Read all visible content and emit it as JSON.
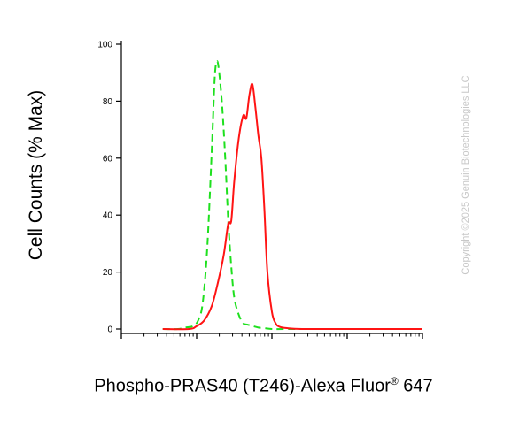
{
  "chart_data": {
    "type": "line",
    "title": "",
    "ylabel": "Cell Counts (% Max)",
    "xlabel_main": "Phospho-PRAS40 (T246)-Alexa Fluor",
    "xlabel_sup": "®",
    "xlabel_tail": " 647",
    "ylim": [
      0,
      100
    ],
    "yticks": [
      "0",
      "20",
      "40",
      "60",
      "80",
      "100"
    ],
    "xscale": "log",
    "xlim_decades": [
      0,
      4
    ],
    "grid": false,
    "series": [
      {
        "color": "#1ee01e",
        "dash": "dashed",
        "x": [
          0.55,
          0.75,
          0.85,
          0.95,
          1.02,
          1.08,
          1.14,
          1.2,
          1.24,
          1.27,
          1.3,
          1.34,
          1.38,
          1.42,
          1.46,
          1.5,
          1.56,
          1.62,
          1.68,
          1.75,
          1.82,
          1.9,
          2.0,
          2.2,
          2.5,
          3.0,
          4.0
        ],
        "y": [
          0,
          0,
          0.5,
          1,
          3,
          9,
          28,
          62,
          88,
          94,
          90,
          78,
          60,
          38,
          22,
          11,
          5,
          2,
          1.5,
          1,
          0.5,
          0.3,
          0,
          0,
          0,
          0,
          0
        ]
      },
      {
        "color": "#ff1414",
        "dash": "solid",
        "x": [
          0.55,
          0.9,
          1.0,
          1.1,
          1.2,
          1.28,
          1.36,
          1.42,
          1.46,
          1.5,
          1.56,
          1.62,
          1.66,
          1.7,
          1.74,
          1.78,
          1.82,
          1.86,
          1.9,
          1.94,
          2.0,
          2.05,
          2.1,
          2.2,
          2.4,
          3.0,
          4.0
        ],
        "y": [
          0,
          0,
          1,
          3,
          8,
          16,
          26,
          37,
          38,
          52,
          67,
          75,
          74,
          82,
          86,
          78,
          68,
          60,
          42,
          20,
          6,
          2,
          0.8,
          0.3,
          0,
          0,
          0
        ]
      }
    ]
  },
  "watermark": "Copyright ©2025 Genuin Biotechnologies LLC"
}
